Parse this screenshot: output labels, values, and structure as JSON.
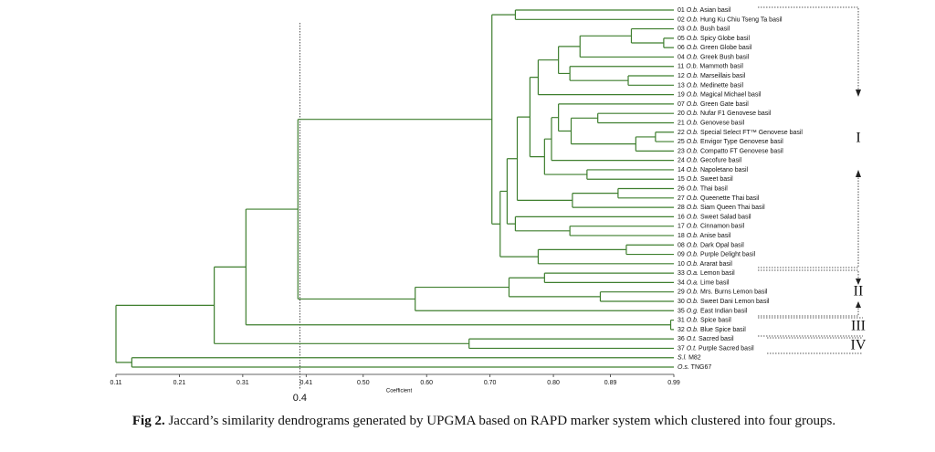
{
  "chart_data": {
    "type": "dendrogram",
    "xlabel": "Coefficient",
    "xlim": [
      0.11,
      0.99
    ],
    "xticks": [
      0.11,
      0.21,
      0.31,
      0.41,
      {
        "value": 0.5,
        "label": "0.50"
      },
      {
        "value": 0.6,
        "label": "0.60"
      },
      {
        "value": 0.7,
        "label": "0.70"
      },
      {
        "value": 0.8,
        "label": "0.80"
      },
      0.89,
      0.99
    ],
    "cutoff": 0.4,
    "color": "#3f7f2f",
    "groups": [
      {
        "label": "I"
      },
      {
        "label": "II"
      },
      {
        "label": "III"
      },
      {
        "label": "IV"
      }
    ],
    "caption": {
      "label": "Fig 2.",
      "text": "Jaccard’s similarity dendrograms generated by UPGMA based on RAPD marker system which clustered into four groups."
    },
    "tree": {
      "height": 0.11,
      "children": [
        {
          "height": 0.265,
          "children": [
            {
              "height": 0.315,
              "children": [
                {
                  "height": 0.397,
                  "children": [
                    {
                      "height": 0.703,
                      "children": [
                        {
                          "height": 0.74,
                          "children": [
                            {
                              "id": "01",
                              "species": "O.b.",
                              "name": "Asian basil"
                            },
                            {
                              "id": "02",
                              "species": "O.b.",
                              "name": "Hung Ku Chiu Tseng Ta basil"
                            }
                          ]
                        },
                        {
                          "height": 0.716,
                          "children": [
                            {
                              "height": 0.727,
                              "children": [
                                {
                                  "height": 0.743,
                                  "children": [
                                    {
                                      "height": 0.763,
                                      "children": [
                                        {
                                          "height": 0.776,
                                          "children": [
                                            {
                                              "height": 0.808,
                                              "children": [
                                                {
                                                  "height": 0.842,
                                                  "children": [
                                                    {
                                                      "height": 0.923,
                                                      "children": [
                                                        {
                                                          "id": "03",
                                                          "species": "O.b.",
                                                          "name": "Bush basil"
                                                        },
                                                        {
                                                          "height": 0.974,
                                                          "children": [
                                                            {
                                                              "id": "05",
                                                              "species": "O.b.",
                                                              "name": "Spicy Globe basil"
                                                            },
                                                            {
                                                              "id": "06",
                                                              "species": "O.b.",
                                                              "name": "Green Globe basil"
                                                            }
                                                          ]
                                                        }
                                                      ]
                                                    },
                                                    {
                                                      "id": "04",
                                                      "species": "O.b.",
                                                      "name": "Greek Bush basil"
                                                    }
                                                  ]
                                                },
                                                {
                                                  "height": 0.826,
                                                  "children": [
                                                    {
                                                      "id": "11",
                                                      "species": "O.b.",
                                                      "name": "Mammoth basil"
                                                    },
                                                    {
                                                      "height": 0.918,
                                                      "children": [
                                                        {
                                                          "id": "12",
                                                          "species": "O.b.",
                                                          "name": "Marseillais basil"
                                                        },
                                                        {
                                                          "id": "13",
                                                          "species": "O.b.",
                                                          "name": "Medinette basil"
                                                        }
                                                      ]
                                                    }
                                                  ]
                                                }
                                              ]
                                            },
                                            {
                                              "id": "19",
                                              "species": "O.b.",
                                              "name": "Magical Michael basil"
                                            }
                                          ]
                                        },
                                        {
                                          "height": 0.786,
                                          "children": [
                                            {
                                              "height": 0.797,
                                              "children": [
                                                {
                                                  "height": 0.808,
                                                  "children": [
                                                    {
                                                      "id": "07",
                                                      "species": "O.b.",
                                                      "name": "Green Gate basil"
                                                    },
                                                    {
                                                      "height": 0.828,
                                                      "children": [
                                                        {
                                                          "height": 0.87,
                                                          "children": [
                                                            {
                                                              "id": "20",
                                                              "species": "O.b.",
                                                              "name": "Nufar F1 Genovese basil"
                                                            },
                                                            {
                                                              "id": "21",
                                                              "species": "O.b.",
                                                              "name": "Genovese basil"
                                                            }
                                                          ]
                                                        },
                                                        {
                                                          "height": 0.93,
                                                          "children": [
                                                            {
                                                              "height": 0.961,
                                                              "children": [
                                                                {
                                                                  "id": "22",
                                                                  "species": "O.b.",
                                                                  "name": "Special Select FT™ Genovese basil"
                                                                },
                                                                {
                                                                  "id": "25",
                                                                  "species": "O.b.",
                                                                  "name": "Envigor Type Genovese basil"
                                                                }
                                                              ]
                                                            },
                                                            {
                                                              "id": "23",
                                                              "species": "O.b.",
                                                              "name": "Compatto FT Genovese basil"
                                                            }
                                                          ]
                                                        }
                                                      ]
                                                    }
                                                  ]
                                                },
                                                {
                                                  "id": "24",
                                                  "species": "O.b.",
                                                  "name": "Gecofure basil"
                                                }
                                              ]
                                            },
                                            {
                                              "height": 0.853,
                                              "children": [
                                                {
                                                  "id": "14",
                                                  "species": "O.b.",
                                                  "name": "Napoletano basil"
                                                },
                                                {
                                                  "id": "15",
                                                  "species": "O.b.",
                                                  "name": "Sweet basil"
                                                }
                                              ]
                                            }
                                          ]
                                        }
                                      ]
                                    },
                                    {
                                      "height": 0.83,
                                      "children": [
                                        {
                                          "height": 0.902,
                                          "children": [
                                            {
                                              "id": "26",
                                              "species": "O.b.",
                                              "name": "Thai basil"
                                            },
                                            {
                                              "id": "27",
                                              "species": "O.b.",
                                              "name": "Queenette Thai basil"
                                            }
                                          ]
                                        },
                                        {
                                          "id": "28",
                                          "species": "O.b.",
                                          "name": "Siam Queen Thai basil"
                                        }
                                      ]
                                    }
                                  ]
                                },
                                {
                                  "height": 0.74,
                                  "children": [
                                    {
                                      "id": "16",
                                      "species": "O.b.",
                                      "name": "Sweet Salad basil"
                                    },
                                    {
                                      "height": 0.826,
                                      "children": [
                                        {
                                          "id": "17",
                                          "species": "O.b.",
                                          "name": "Cinnamon basil"
                                        },
                                        {
                                          "id": "18",
                                          "species": "O.b.",
                                          "name": "Anise basil"
                                        }
                                      ]
                                    }
                                  ]
                                }
                              ]
                            },
                            {
                              "height": 0.776,
                              "children": [
                                {
                                  "height": 0.915,
                                  "children": [
                                    {
                                      "id": "08",
                                      "species": "O.b.",
                                      "name": "Dark Opal basil"
                                    },
                                    {
                                      "id": "09",
                                      "species": "O.b.",
                                      "name": "Purple Delight basil"
                                    }
                                  ]
                                },
                                {
                                  "id": "10",
                                  "species": "O.b.",
                                  "name": "Ararat basil"
                                }
                              ]
                            }
                          ]
                        }
                      ]
                    },
                    {
                      "height": 0.582,
                      "children": [
                        {
                          "height": 0.73,
                          "children": [
                            {
                              "height": 0.786,
                              "children": [
                                {
                                  "id": "33",
                                  "species": "O.a.",
                                  "name": "Lemon basil"
                                },
                                {
                                  "id": "34",
                                  "species": "O.a.",
                                  "name": "Lime basil"
                                }
                              ]
                            },
                            {
                              "height": 0.874,
                              "children": [
                                {
                                  "id": "29",
                                  "species": "O.b.",
                                  "name": "Mrs. Burns Lemon basil"
                                },
                                {
                                  "id": "30",
                                  "species": "O.b.",
                                  "name": "Sweet Dani Lemon basil"
                                }
                              ]
                            }
                          ]
                        },
                        {
                          "id": "35",
                          "species": "O.g.",
                          "name": "East Indian basil"
                        }
                      ]
                    }
                  ]
                },
                {
                  "height": 0.985,
                  "children": [
                    {
                      "id": "31",
                      "species": "O.b.",
                      "name": "Spice basil"
                    },
                    {
                      "id": "32",
                      "species": "O.b.",
                      "name": "Blue Spice basil"
                    }
                  ]
                }
              ]
            },
            {
              "height": 0.667,
              "children": [
                {
                  "id": "36",
                  "species": "O.t.",
                  "name": "Sacred basil"
                },
                {
                  "id": "37",
                  "species": "O.t.",
                  "name": "Purple Sacred basil"
                }
              ]
            }
          ]
        },
        {
          "height": 0.135,
          "children": [
            {
              "species": "S.l.",
              "name": "M82"
            },
            {
              "species": "O.s.",
              "name": "TNG67"
            }
          ]
        }
      ]
    }
  }
}
